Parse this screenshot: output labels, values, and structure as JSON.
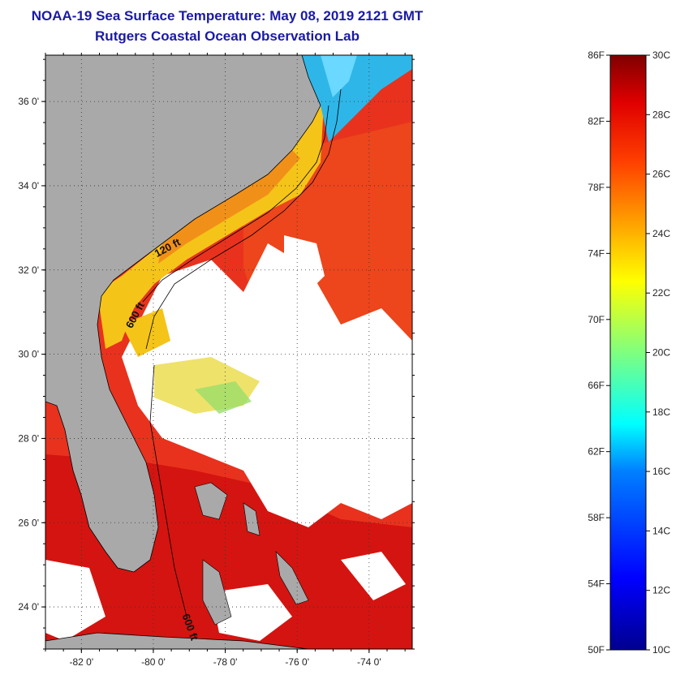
{
  "title": {
    "line1": "NOAA-19 Sea Surface Temperature:  May 08, 2019 2121 GMT",
    "line2": "Rutgers Coastal Ocean Observation Lab"
  },
  "map": {
    "lon_range": [
      -83.0,
      -72.8
    ],
    "lat_range": [
      23.0,
      37.1
    ],
    "lon_ticks": [
      {
        "value": -82,
        "label": "-82 0'"
      },
      {
        "value": -80,
        "label": "-80 0'"
      },
      {
        "value": -78,
        "label": "-78 0'"
      },
      {
        "value": -76,
        "label": "-76 0'"
      },
      {
        "value": -74,
        "label": "-74 0'"
      }
    ],
    "lat_ticks": [
      {
        "value": 24,
        "label": "24 0'"
      },
      {
        "value": 26,
        "label": "26 0'"
      },
      {
        "value": 28,
        "label": "28 0'"
      },
      {
        "value": 30,
        "label": "30 0'"
      },
      {
        "value": 32,
        "label": "32 0'"
      },
      {
        "value": 34,
        "label": "34 0'"
      },
      {
        "value": 36,
        "label": "36 0'"
      }
    ],
    "contour_labels": [
      {
        "text": "120 ft",
        "lon": -79.9,
        "lat": 32.3,
        "rotate": -28
      },
      {
        "text": "600 ft",
        "lon": -80.6,
        "lat": 30.6,
        "rotate": -62
      },
      {
        "text": "600 ft",
        "lon": -79.2,
        "lat": 23.8,
        "rotate": 70
      }
    ],
    "colors": {
      "land": "#a9a9a9",
      "cloud": "#ffffff",
      "ocean_warm": "#e8321e",
      "ocean_hot": "#d41410",
      "coastal_warm": "#f07a18",
      "coastal_yellow": "#f5c419",
      "cool_blue": "#2fb6e8"
    }
  },
  "colorbar": {
    "f_labels": [
      "86F",
      "82F",
      "78F",
      "74F",
      "70F",
      "66F",
      "62F",
      "58F",
      "54F",
      "50F"
    ],
    "c_labels": [
      "30C",
      "28C",
      "26C",
      "24C",
      "22C",
      "20C",
      "18C",
      "16C",
      "14C",
      "12C",
      "10C"
    ],
    "range_c": [
      10,
      30
    ]
  }
}
